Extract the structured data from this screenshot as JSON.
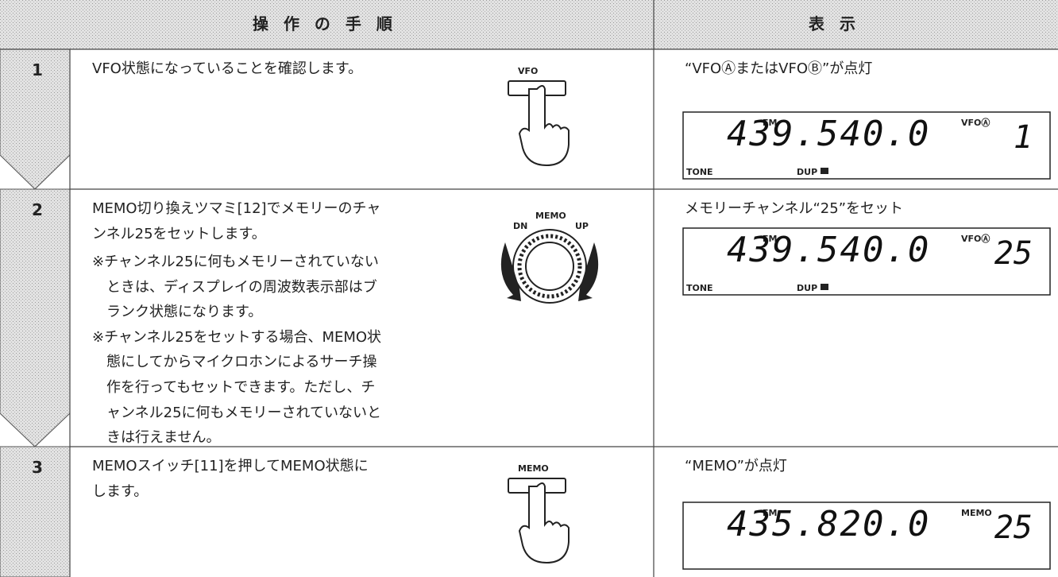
{
  "header": {
    "procedure": "操 作 の 手 順",
    "display": "表 示"
  },
  "steps": [
    {
      "number": "1",
      "lines": [
        "VFO状態になっていることを確認します。"
      ],
      "notes": [],
      "control": {
        "labels": [
          "VFO"
        ]
      },
      "display": {
        "caption": "“VFOⒶまたはVFOⒷ”が点灯",
        "lcd": {
          "mode": "FM",
          "indicator": "VFOⒶ",
          "frequency": "439.540.0",
          "channel": "1",
          "tone": "TONE",
          "dup": "DUP"
        }
      }
    },
    {
      "number": "2",
      "lines": [
        "MEMO切り換えツマミ[12]でメモリーのチャ",
        "ンネル25をセットします。"
      ],
      "notes": [
        [
          "※チャンネル25に何もメモリーされていない",
          "ときは、ディスプレイの周波数表示部はブ",
          "ランク状態になります。"
        ],
        [
          "※チャンネル25をセットする場合、MEMO状",
          "態にしてからマイクロホンによるサーチ操",
          "作を行ってもセットできます。ただし、チ",
          "ャンネル25に何もメモリーされていないと",
          "きは行えません。"
        ]
      ],
      "control": {
        "labels": [
          "DN",
          "MEMO",
          "UP"
        ]
      },
      "display": {
        "caption": "メモリーチャンネル“25”をセット",
        "lcd": {
          "mode": "FM",
          "indicator": "VFOⒶ",
          "frequency": "439.540.0",
          "channel": "25",
          "tone": "TONE",
          "dup": "DUP"
        }
      }
    },
    {
      "number": "3",
      "lines": [
        "MEMOスイッチ[11]を押してMEMO状態に",
        "します。"
      ],
      "notes": [],
      "control": {
        "labels": [
          "MEMO"
        ]
      },
      "display": {
        "caption": "“MEMO”が点灯",
        "lcd": {
          "mode": "FM",
          "indicator": "MEMO",
          "frequency": "435.820.0",
          "channel": "25"
        }
      }
    }
  ]
}
